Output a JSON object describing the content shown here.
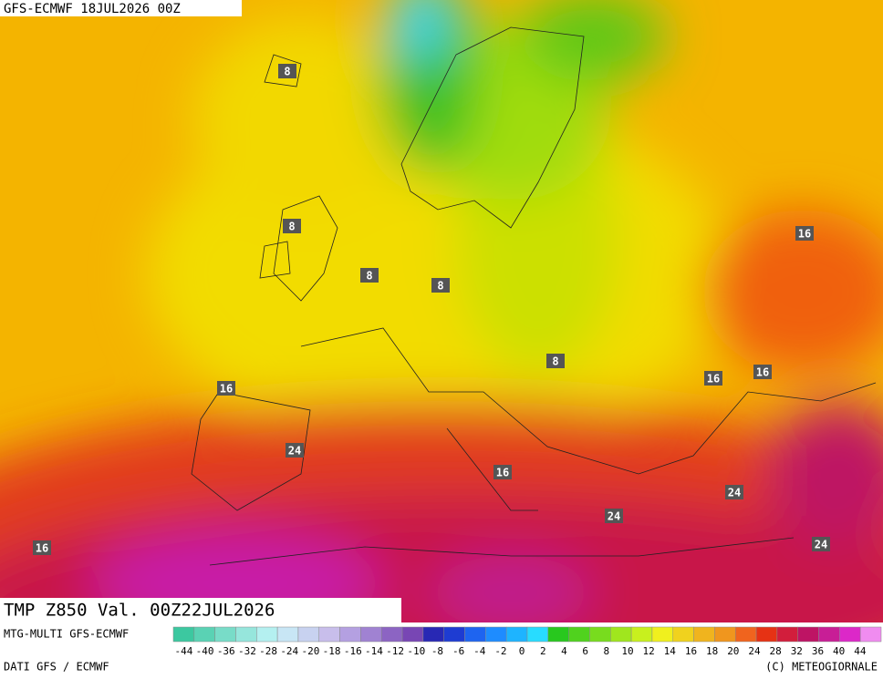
{
  "header": {
    "run": "GFS-ECMWF 18JUL2026 00Z",
    "field": "TMP Z850 Val. 00Z22JUL2026"
  },
  "contour_labels": [
    8,
    8,
    8,
    8,
    8,
    16,
    16,
    16,
    16,
    16,
    16,
    24,
    24,
    24,
    24
  ],
  "colorbar": {
    "source": "MTG-MULTI GFS-ECMWF",
    "ticks": [
      -44,
      -40,
      -36,
      -32,
      -28,
      -24,
      -20,
      -18,
      -16,
      -14,
      -12,
      -10,
      -8,
      -6,
      -4,
      -2,
      0,
      2,
      4,
      6,
      8,
      10,
      12,
      14,
      16,
      18,
      20,
      24,
      28,
      32,
      36,
      40,
      44
    ],
    "colors": [
      "#3cc8a0",
      "#5ad2b4",
      "#78dcc8",
      "#96e6dc",
      "#b4f0f0",
      "#c8e6f5",
      "#c8d2f0",
      "#c8beeb",
      "#b4a0e1",
      "#a082d2",
      "#8c64c3",
      "#7846b4",
      "#2828b4",
      "#1e3cd2",
      "#1e64f0",
      "#1e8cff",
      "#1eb4ff",
      "#28dcff",
      "#28c81e",
      "#50d21e",
      "#78dc1e",
      "#a0e61e",
      "#c8f01e",
      "#f0f01e",
      "#f0d21e",
      "#f0b41e",
      "#f0961e",
      "#f0641e",
      "#e63214",
      "#d21e3c",
      "#be1464",
      "#c81e96",
      "#dc28c8",
      "#f08cf0"
    ]
  },
  "footer": {
    "data": "DATI GFS / ECMWF",
    "credit": "(C) METEOGIORNALE"
  }
}
